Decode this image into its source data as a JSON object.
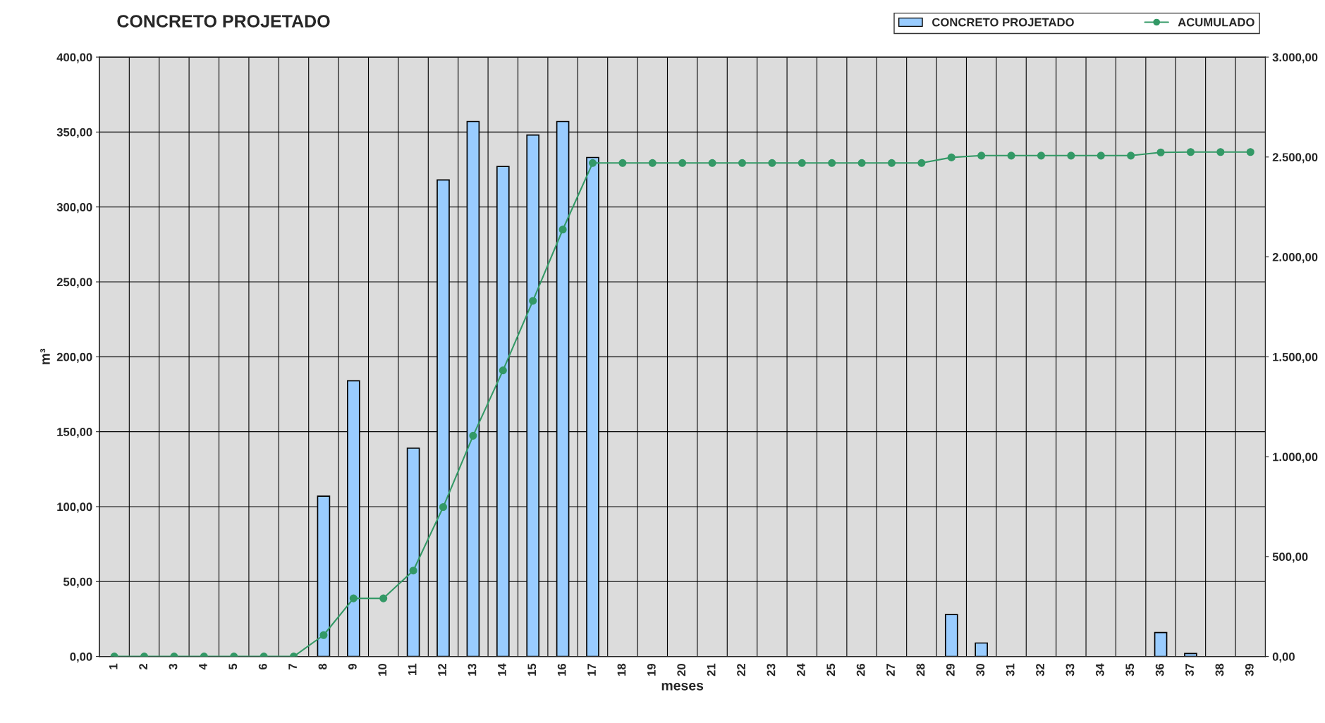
{
  "chart_data": {
    "type": "bar",
    "title": "CONCRETO PROJETADO",
    "xlabel": "meses",
    "ylabel": "m³",
    "categories": [
      "1",
      "2",
      "3",
      "4",
      "5",
      "6",
      "7",
      "8",
      "9",
      "10",
      "11",
      "12",
      "13",
      "14",
      "15",
      "16",
      "17",
      "18",
      "19",
      "20",
      "21",
      "22",
      "23",
      "24",
      "25",
      "26",
      "27",
      "28",
      "29",
      "30",
      "31",
      "32",
      "33",
      "34",
      "35",
      "36",
      "37",
      "38",
      "39"
    ],
    "series": [
      {
        "name": "CONCRETO PROJETADO",
        "color": "#99ccff",
        "values": [
          0,
          0,
          0,
          0,
          0,
          0,
          0,
          107,
          184,
          0,
          139,
          318,
          357,
          327,
          348,
          357,
          333,
          0,
          0,
          0,
          0,
          0,
          0,
          0,
          0,
          0,
          0,
          0,
          28,
          9,
          0,
          0,
          0,
          0,
          0,
          16,
          2,
          0,
          0
        ]
      },
      {
        "name": "ACUMULADO",
        "type": "line",
        "axis": "y2",
        "color": "#339966",
        "marker": "circle",
        "line_style": "solid",
        "values": [
          0,
          0,
          0,
          0,
          0,
          0,
          0,
          107,
          291,
          291,
          430,
          748,
          1105,
          1432,
          1780,
          2137,
          2470,
          2470,
          2470,
          2470,
          2470,
          2470,
          2470,
          2470,
          2470,
          2470,
          2470,
          2470,
          2498,
          2507,
          2507,
          2507,
          2507,
          2507,
          2507,
          2523,
          2525,
          2525,
          2525
        ]
      }
    ],
    "ylim": [
      0,
      400
    ],
    "yticks": [
      {
        "value": 0,
        "label": "0,00"
      },
      {
        "value": 50,
        "label": "50,00"
      },
      {
        "value": 100,
        "label": "100,00"
      },
      {
        "value": 150,
        "label": "150,00"
      },
      {
        "value": 200,
        "label": "200,00"
      },
      {
        "value": 250,
        "label": "250,00"
      },
      {
        "value": 300,
        "label": "300,00"
      },
      {
        "value": 350,
        "label": "350,00"
      },
      {
        "value": 400,
        "label": "400,00"
      }
    ],
    "y2lim": [
      0,
      3000
    ],
    "y2ticks": [
      {
        "value": 0,
        "label": "0,00"
      },
      {
        "value": 500,
        "label": "500,00"
      },
      {
        "value": 1000,
        "label": "1.000,00"
      },
      {
        "value": 1500,
        "label": "1.500,00"
      },
      {
        "value": 2000,
        "label": "2.000,00"
      },
      {
        "value": 2500,
        "label": "2.500,00"
      },
      {
        "value": 3000,
        "label": "3.000,00"
      }
    ],
    "grid": true,
    "legend": "top right"
  }
}
